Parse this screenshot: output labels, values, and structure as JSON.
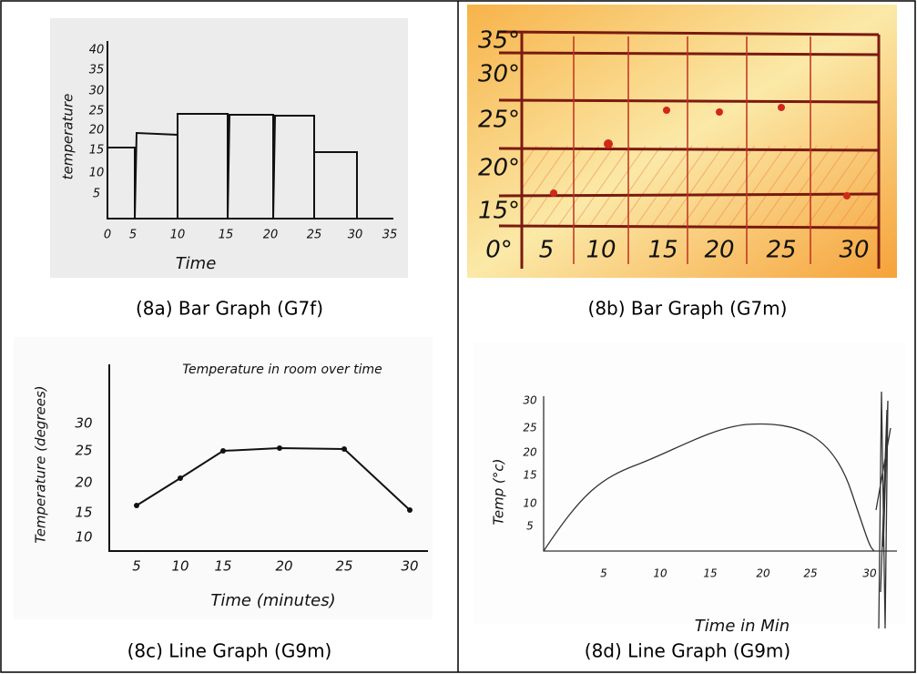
{
  "figure": {
    "panels": [
      {
        "caption": "(8a) Bar Graph (G7f)",
        "x_title": "Time",
        "y_title": "temperature",
        "x_ticks": [
          "0",
          "5",
          "10",
          "15",
          "20",
          "25",
          "30",
          "35"
        ],
        "y_ticks": [
          "5",
          "10",
          "15",
          "20",
          "25",
          "30",
          "35",
          "40"
        ]
      },
      {
        "caption": "(8b) Bar Graph (G7m)",
        "x_ticks": [
          "0°",
          "5",
          "10",
          "15",
          "20",
          "25",
          "30"
        ],
        "y_ticks": [
          "15°",
          "20°",
          "25°",
          "30°",
          "35°"
        ]
      },
      {
        "caption": "(8c) Line Graph (G9m)",
        "title": "Temperature in room over time",
        "x_title": "Time (minutes)",
        "y_title": "Temperature (degrees)",
        "x_ticks": [
          "5",
          "10",
          "15",
          "20",
          "25",
          "30"
        ],
        "y_ticks": [
          "10",
          "15",
          "20",
          "25",
          "30"
        ]
      },
      {
        "caption": "(8d) Line Graph (G9m)",
        "x_title": "Time in Min",
        "y_title": "Temp (°c)",
        "x_ticks": [
          "5",
          "10",
          "15",
          "20",
          "25",
          "30"
        ],
        "y_ticks": [
          "5",
          "10",
          "15",
          "20",
          "25",
          "30"
        ]
      }
    ]
  }
}
